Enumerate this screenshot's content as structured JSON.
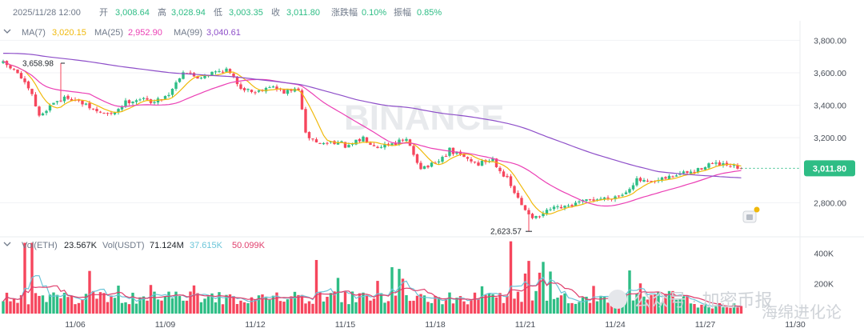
{
  "colors": {
    "up": "#2ebd85",
    "down": "#f6465d",
    "ma7": "#f0b90b",
    "ma25": "#eb40b5",
    "ma99": "#8e4fc9",
    "last_price": "#2ebd85",
    "vol_ma1": "#6ac5d8",
    "vol_ma2": "#e03e6c"
  },
  "header": {
    "timestamp": "2025/11/28 12:00",
    "open_label": "开",
    "open": "3,008.64",
    "high_label": "高",
    "high": "3,028.94",
    "low_label": "低",
    "low": "3,003.35",
    "close_label": "收",
    "close": "3,011.80",
    "change_label": "涨跌幅",
    "change": "0.10%",
    "amplitude_label": "振幅",
    "amplitude": "0.85%"
  },
  "ma_legend": {
    "ma7_label": "MA(7)",
    "ma7_value": "3,020.15",
    "ma25_label": "MA(25)",
    "ma25_value": "2,952.90",
    "ma99_label": "MA(99)",
    "ma99_value": "3,040.61"
  },
  "vol_legend": {
    "vol_eth_label": "Vol(ETH)",
    "vol_eth_value": "23.567K",
    "vol_usdt_label": "Vol(USDT)",
    "vol_usdt_value": "71.124M",
    "vol_ma1": "37.615K",
    "vol_ma2": "50.099K"
  },
  "watermark": "BINANCE",
  "overlay_text": {
    "account": "公众号 · 加密币报",
    "footer": "海绵进化论"
  },
  "chart_data": {
    "type": "candlestick",
    "symbol": "ETH/USDT",
    "interval": "2h",
    "price_axis": {
      "ylim": [
        2590,
        3920
      ],
      "ticks": [
        "3,800.00",
        "3,600.00",
        "3,400.00",
        "3,200.00",
        "2,800.00"
      ],
      "tick_values": [
        3800,
        3600,
        3400,
        3200,
        2800
      ]
    },
    "volume_axis": {
      "ylim": [
        0,
        510000
      ],
      "ticks": [
        "400K",
        "200K"
      ],
      "tick_values": [
        400000,
        200000
      ]
    },
    "last_price": 3011.8,
    "last_price_label": "3,011.80",
    "high_marker": {
      "value": 3658.98,
      "label": "3,658.98",
      "index": 16
    },
    "low_marker": {
      "value": 2623.57,
      "label": "2,623.57",
      "index": 146
    },
    "date_labels": [
      {
        "label": "11/06",
        "index": 20
      },
      {
        "label": "11/09",
        "index": 45
      },
      {
        "label": "11/12",
        "index": 70
      },
      {
        "label": "11/15",
        "index": 95
      },
      {
        "label": "11/18",
        "index": 120
      },
      {
        "label": "11/21",
        "index": 145
      },
      {
        "label": "11/24",
        "index": 170
      },
      {
        "label": "11/27",
        "index": 195
      },
      {
        "label": "11/30",
        "index": 220
      }
    ],
    "anchors": [
      [
        0,
        3660
      ],
      [
        4,
        3600
      ],
      [
        8,
        3460
      ],
      [
        10,
        3330
      ],
      [
        14,
        3420
      ],
      [
        18,
        3450
      ],
      [
        22,
        3410
      ],
      [
        26,
        3360
      ],
      [
        30,
        3340
      ],
      [
        34,
        3420
      ],
      [
        38,
        3440
      ],
      [
        42,
        3420
      ],
      [
        46,
        3470
      ],
      [
        50,
        3610
      ],
      [
        54,
        3570
      ],
      [
        58,
        3600
      ],
      [
        62,
        3620
      ],
      [
        66,
        3510
      ],
      [
        70,
        3480
      ],
      [
        74,
        3520
      ],
      [
        78,
        3480
      ],
      [
        82,
        3500
      ],
      [
        84,
        3220
      ],
      [
        88,
        3160
      ],
      [
        92,
        3180
      ],
      [
        96,
        3140
      ],
      [
        100,
        3200
      ],
      [
        104,
        3150
      ],
      [
        108,
        3170
      ],
      [
        112,
        3180
      ],
      [
        116,
        3020
      ],
      [
        120,
        3030
      ],
      [
        124,
        3120
      ],
      [
        128,
        3080
      ],
      [
        132,
        3040
      ],
      [
        136,
        3070
      ],
      [
        140,
        2940
      ],
      [
        144,
        2780
      ],
      [
        148,
        2700
      ],
      [
        152,
        2760
      ],
      [
        156,
        2770
      ],
      [
        160,
        2800
      ],
      [
        164,
        2820
      ],
      [
        168,
        2830
      ],
      [
        172,
        2850
      ],
      [
        176,
        2940
      ],
      [
        180,
        2920
      ],
      [
        184,
        2950
      ],
      [
        188,
        2980
      ],
      [
        192,
        2990
      ],
      [
        196,
        3040
      ],
      [
        200,
        3030
      ],
      [
        204,
        3015
      ],
      [
        205,
        3012
      ]
    ],
    "candle_count": 206
  }
}
